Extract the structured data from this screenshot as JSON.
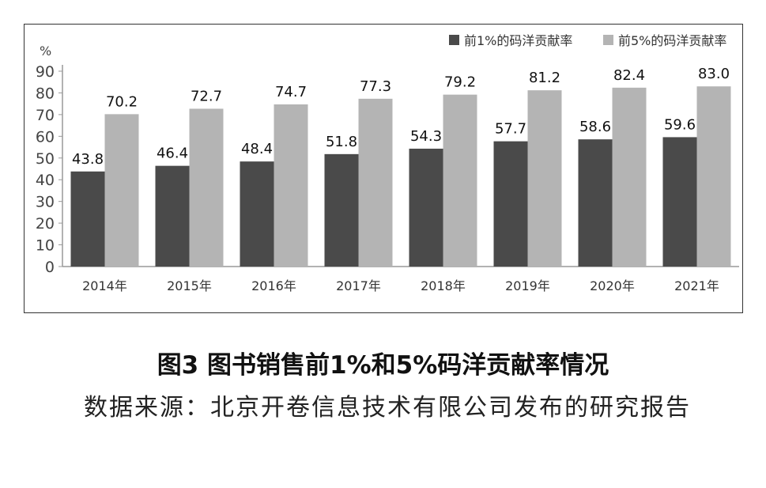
{
  "chart_data": {
    "type": "bar",
    "categories": [
      "2014年",
      "2015年",
      "2016年",
      "2017年",
      "2018年",
      "2019年",
      "2020年",
      "2021年"
    ],
    "series": [
      {
        "name": "前1%的码洋贡献率",
        "color": "#4a4a4a",
        "values": [
          43.8,
          46.4,
          48.4,
          51.8,
          54.3,
          57.7,
          58.6,
          59.6
        ]
      },
      {
        "name": "前5%的码洋贡献率",
        "color": "#b4b4b4",
        "values": [
          70.2,
          72.7,
          74.7,
          77.3,
          79.2,
          81.2,
          82.4,
          83.0
        ]
      }
    ],
    "ylabel": "%",
    "ylim": [
      0,
      90
    ],
    "yticks": [
      0,
      10,
      20,
      30,
      40,
      50,
      60,
      70,
      80,
      90
    ],
    "grid": false,
    "legend": "top-right",
    "data_labels": true
  },
  "caption": "图3  图书销售前1%和5%码洋贡献率情况",
  "source": "数据来源：北京开卷信息技术有限公司发布的研究报告"
}
